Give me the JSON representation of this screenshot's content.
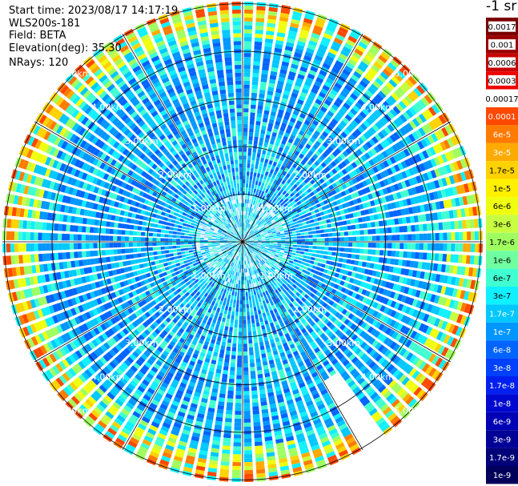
{
  "header": {
    "start_time": "Start time: 2023/08/17 14:17:19",
    "instrument": "WLS200s-181",
    "field": "Field: BETA",
    "elevation": "Elevation(deg): 35.30",
    "nrays": "NRays: 120"
  },
  "colorbar": {
    "unit_label": "-1 sr",
    "labels": [
      "0.0017",
      "0.001",
      "0.0006",
      "0.0003",
      "0.00017",
      "0.0001",
      "6e-5",
      "3e-5",
      "1.7e-5",
      "1e-5",
      "6e-6",
      "3e-6",
      "1.7e-6",
      "1e-6",
      "6e-7",
      "3e-7",
      "1.7e-7",
      "1e-7",
      "6e-8",
      "3e-8",
      "1.7e-8",
      "1e-8",
      "6e-9",
      "3e-9",
      "1.7e-9",
      "1e-9"
    ],
    "colors": [
      "#7a0000",
      "#9b0000",
      "#c80000",
      "#ee0000",
      "#ffffff",
      "#ff4800",
      "#ff7a00",
      "#ffaa00",
      "#ffd200",
      "#fff000",
      "#f0ff10",
      "#c8ff40",
      "#a0ff60",
      "#70ffa0",
      "#40ffd0",
      "#10f0ff",
      "#00c8ff",
      "#0096ff",
      "#0064ff",
      "#0040ff",
      "#0020f0",
      "#0008d0",
      "#0000b4",
      "#000096",
      "#000078",
      "#00005a"
    ]
  },
  "chart_data": {
    "type": "heatmap",
    "projection": "polar PPI",
    "field": "BETA",
    "nrays": 120,
    "elevation_deg": 35.3,
    "ring_labels": [
      "1.00km",
      "2.00km",
      "3.00km",
      "4.00km",
      "5.00km"
    ],
    "color_scale": "log",
    "colorbar_range": [
      1e-09,
      0.0017
    ],
    "grid": true
  }
}
